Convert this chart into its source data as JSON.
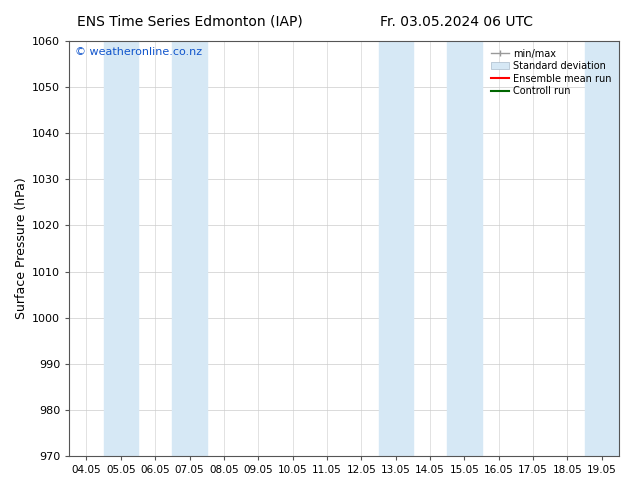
{
  "title_left": "ENS Time Series Edmonton (IAP)",
  "title_right": "Fr. 03.05.2024 06 UTC",
  "ylabel": "Surface Pressure (hPa)",
  "ylim": [
    970,
    1060
  ],
  "yticks": [
    970,
    980,
    990,
    1000,
    1010,
    1020,
    1030,
    1040,
    1050,
    1060
  ],
  "x_labels": [
    "04.05",
    "05.05",
    "06.05",
    "07.05",
    "08.05",
    "09.05",
    "10.05",
    "11.05",
    "12.05",
    "13.05",
    "14.05",
    "15.05",
    "16.05",
    "17.05",
    "18.05",
    "19.05"
  ],
  "shaded_bands": [
    {
      "xmin": 0.5,
      "xmax": 1.5,
      "color": "#d6e8f5"
    },
    {
      "xmin": 2.5,
      "xmax": 3.5,
      "color": "#d6e8f5"
    },
    {
      "xmin": 8.5,
      "xmax": 9.5,
      "color": "#d6e8f5"
    },
    {
      "xmin": 10.5,
      "xmax": 11.5,
      "color": "#d6e8f5"
    },
    {
      "xmin": 14.5,
      "xmax": 15.5,
      "color": "#d6e8f5"
    }
  ],
  "watermark": "© weatheronline.co.nz",
  "watermark_color": "#1155cc",
  "background_color": "#ffffff",
  "plot_bg_color": "#ffffff",
  "grid_color": "#cccccc",
  "tick_color": "#555555",
  "spine_color": "#555555"
}
